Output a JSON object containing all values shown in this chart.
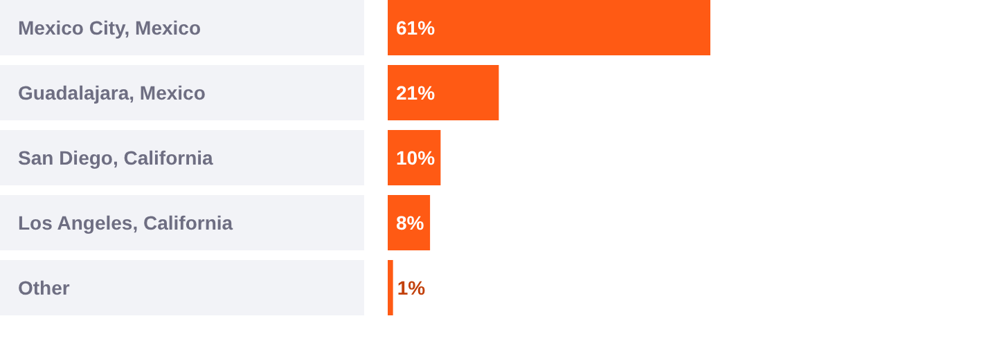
{
  "chart_data": {
    "type": "bar",
    "orientation": "horizontal",
    "categories": [
      "Mexico City, Mexico",
      "Guadalajara, Mexico",
      "San Diego, California",
      "Los Angeles, California",
      "Other"
    ],
    "values": [
      61,
      21,
      10,
      8,
      1
    ],
    "color": "#ff5a14",
    "data_labels": true,
    "value_labels": [
      "61%",
      "21%",
      "10%",
      "8%",
      "1%"
    ]
  }
}
